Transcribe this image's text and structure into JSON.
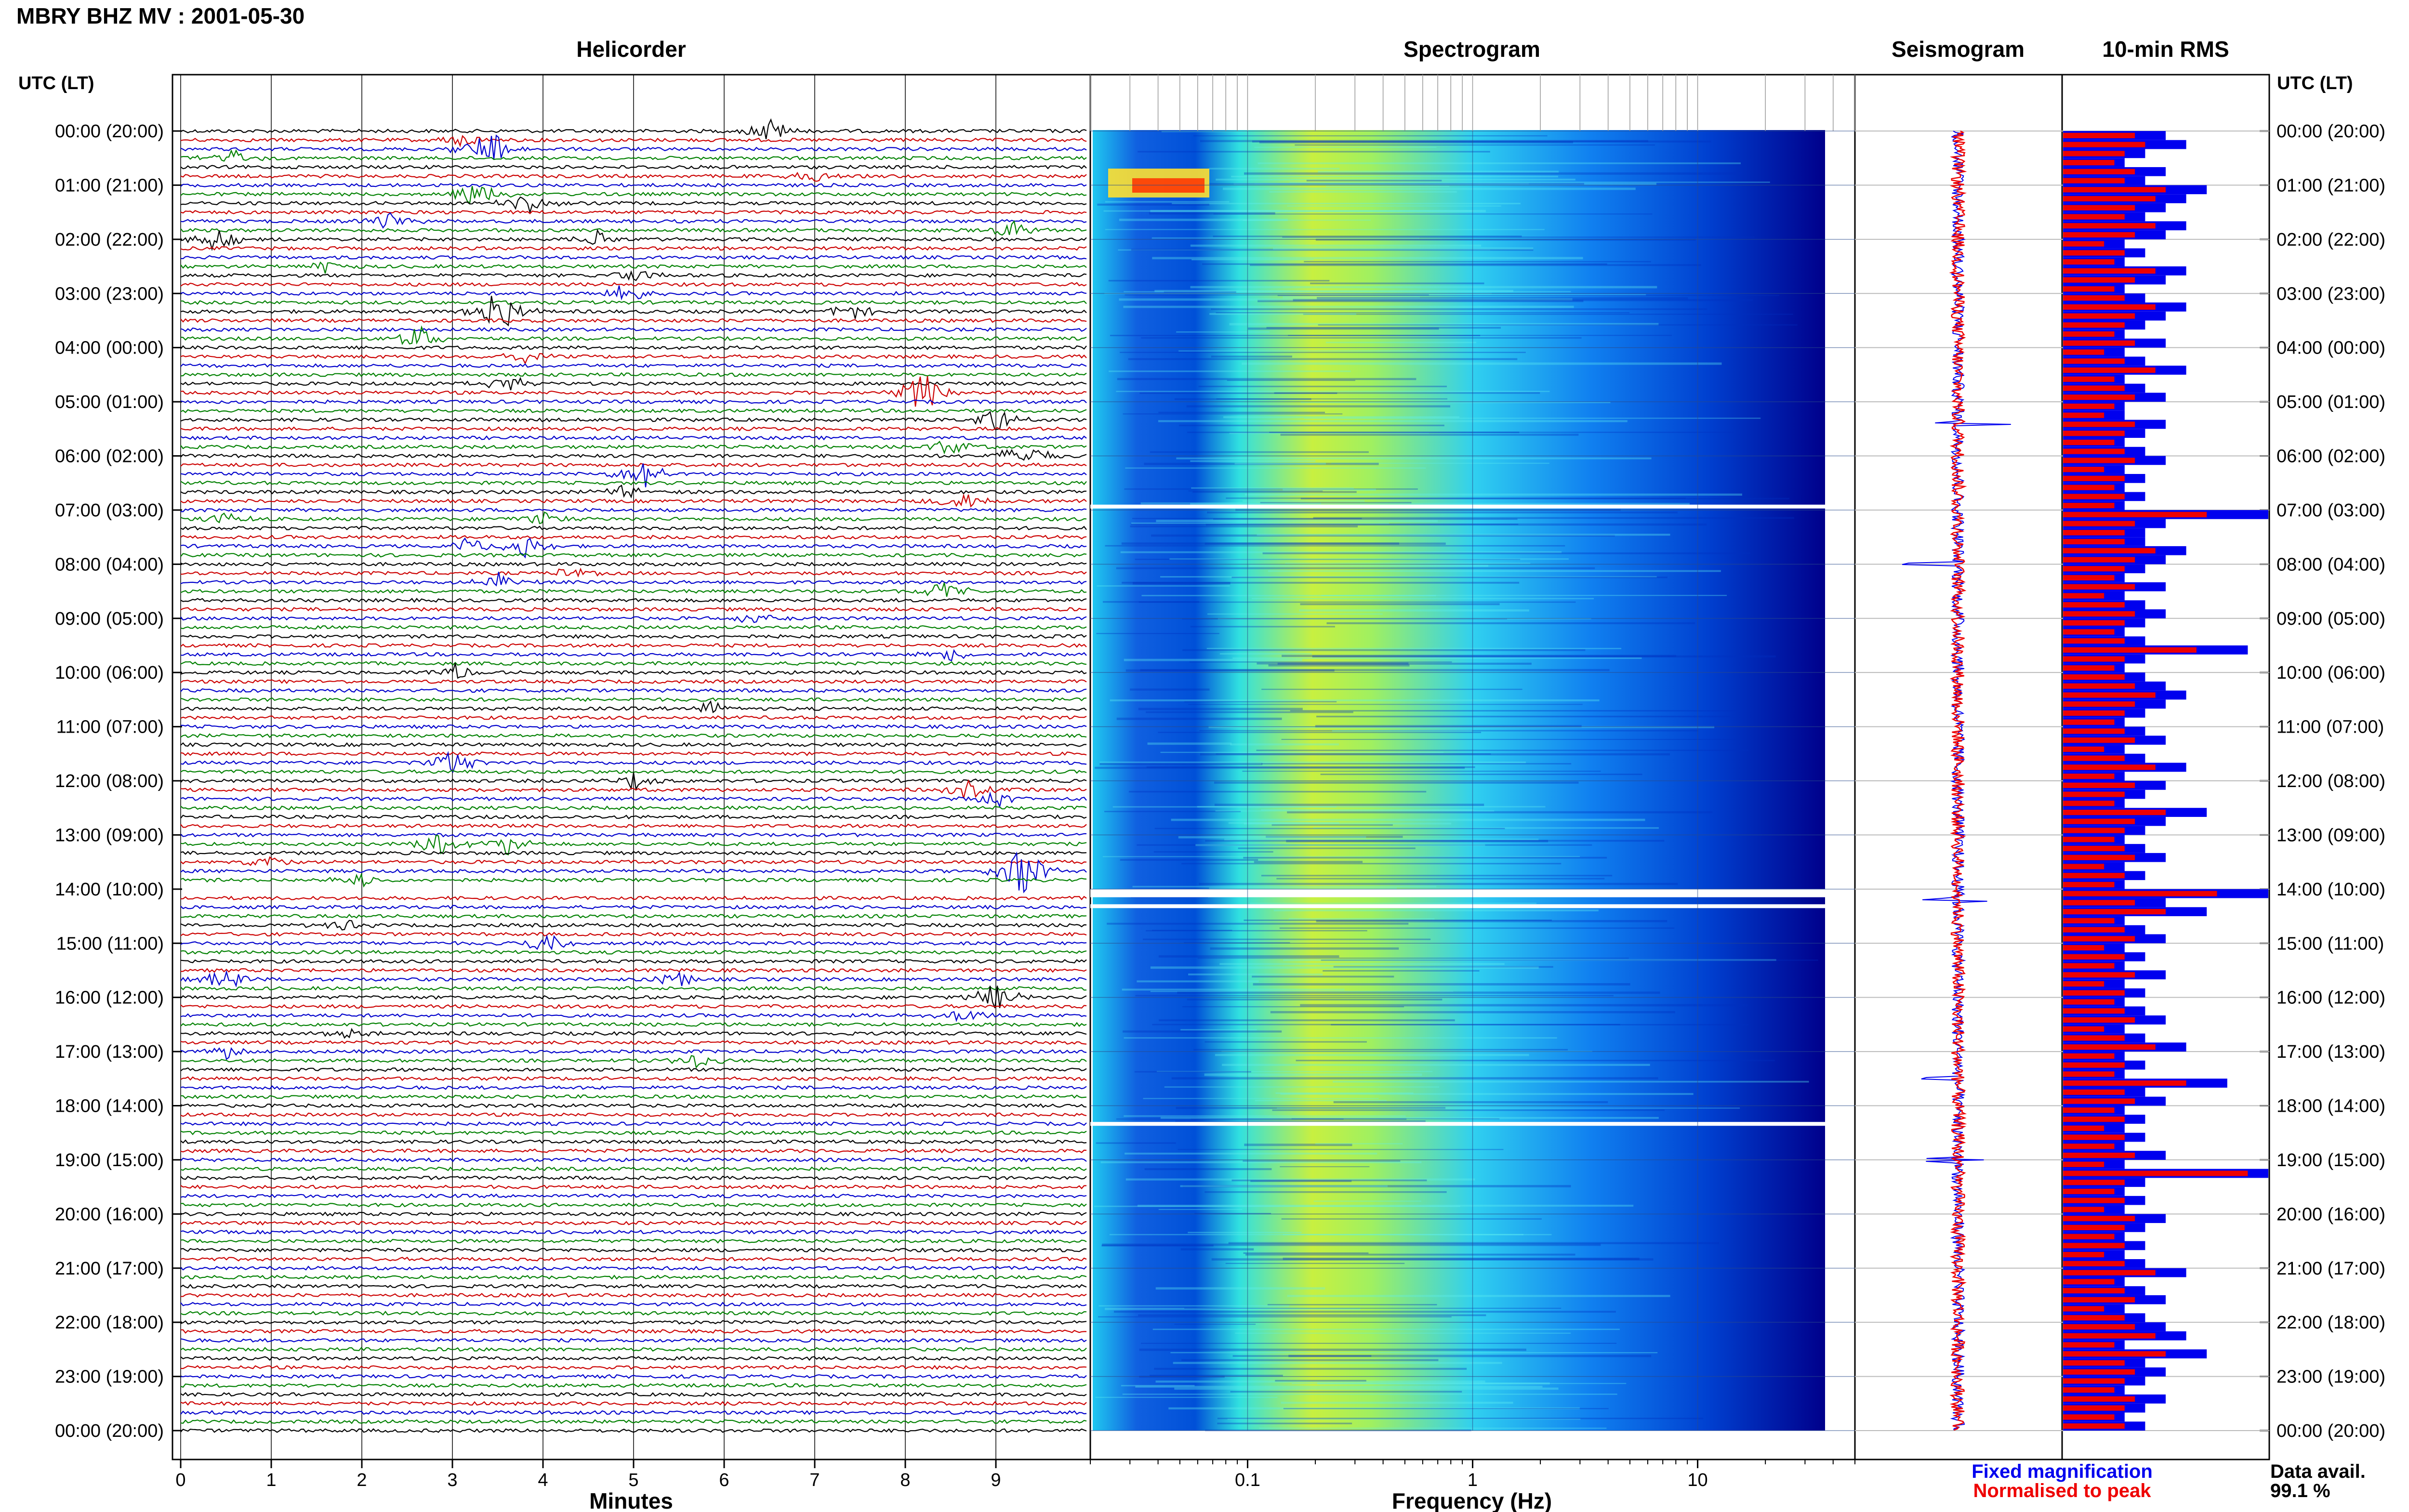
{
  "header": {
    "title": "MBRY BHZ MV : 2001-05-30"
  },
  "panels": {
    "helicorder": "Helicorder",
    "spectrogram": "Spectrogram",
    "seismogram": "Seismogram",
    "rms": "10-min RMS"
  },
  "axes": {
    "left_time_header": "UTC (LT)",
    "right_time_header": "UTC (LT)",
    "helicorder_xlabel": "Minutes",
    "spectrogram_xlabel": "Frequency (Hz)"
  },
  "legend": {
    "fixed": "Fixed magnification",
    "normalised": "Normalised to peak"
  },
  "availability": {
    "label": "Data avail.",
    "value": "99.1 %"
  },
  "colors": {
    "trace_cycle": [
      "#000000",
      "#cc0000",
      "#0000cc",
      "#008000"
    ],
    "fixed_magnification": "#0000ee",
    "normalised_to_peak": "#ee0000",
    "spectrogram_low": "#00008b",
    "spectrogram_high": "#ff0000"
  },
  "chart_data": [
    {
      "type": "line",
      "title": "Helicorder",
      "xlabel": "Minutes",
      "ylabel": "UTC (LT)",
      "x_ticks": [
        "0",
        "1",
        "2",
        "3",
        "4",
        "5",
        "6",
        "7",
        "8",
        "9"
      ],
      "xlim": [
        0,
        10
      ],
      "time_ticks": [
        "00:00 (20:00)",
        "01:00 (21:00)",
        "02:00 (22:00)",
        "03:00 (23:00)",
        "04:00 (00:00)",
        "05:00 (01:00)",
        "06:00 (02:00)",
        "07:00 (03:00)",
        "08:00 (04:00)",
        "09:00 (05:00)",
        "10:00 (06:00)",
        "11:00 (07:00)",
        "12:00 (08:00)",
        "13:00 (09:00)",
        "14:00 (10:00)",
        "15:00 (11:00)",
        "16:00 (12:00)",
        "17:00 (13:00)",
        "18:00 (14:00)",
        "19:00 (15:00)",
        "20:00 (16:00)",
        "21:00 (17:00)",
        "22:00 (18:00)",
        "23:00 (19:00)",
        "00:00 (20:00)"
      ],
      "rows_per_hour": 6,
      "events": [
        {
          "row": 0,
          "minute": 6.5,
          "amp": 0.8
        },
        {
          "row": 1,
          "minute": 3.1,
          "amp": 0.5
        },
        {
          "row": 2,
          "minute": 3.4,
          "amp": 1.4
        },
        {
          "row": 3,
          "minute": 0.6,
          "amp": 0.6
        },
        {
          "row": 5,
          "minute": 7.0,
          "amp": 0.4
        },
        {
          "row": 7,
          "minute": 3.3,
          "amp": 1.2
        },
        {
          "row": 8,
          "minute": 3.8,
          "amp": 0.7
        },
        {
          "row": 10,
          "minute": 2.3,
          "amp": 0.6
        },
        {
          "row": 11,
          "minute": 9.2,
          "amp": 0.6
        },
        {
          "row": 12,
          "minute": 0.4,
          "amp": 0.8
        },
        {
          "row": 12,
          "minute": 4.6,
          "amp": 0.5
        },
        {
          "row": 15,
          "minute": 1.6,
          "amp": 0.4
        },
        {
          "row": 16,
          "minute": 5.0,
          "amp": 0.5
        },
        {
          "row": 18,
          "minute": 4.9,
          "amp": 0.6
        },
        {
          "row": 20,
          "minute": 3.5,
          "amp": 1.6
        },
        {
          "row": 20,
          "minute": 7.4,
          "amp": 0.6
        },
        {
          "row": 23,
          "minute": 2.6,
          "amp": 0.9
        },
        {
          "row": 25,
          "minute": 3.8,
          "amp": 0.4
        },
        {
          "row": 28,
          "minute": 3.6,
          "amp": 0.6
        },
        {
          "row": 29,
          "minute": 8.2,
          "amp": 1.5
        },
        {
          "row": 32,
          "minute": 9.0,
          "amp": 0.8
        },
        {
          "row": 35,
          "minute": 8.5,
          "amp": 0.6
        },
        {
          "row": 36,
          "minute": 9.3,
          "amp": 1.0
        },
        {
          "row": 38,
          "minute": 5.1,
          "amp": 0.9
        },
        {
          "row": 40,
          "minute": 4.9,
          "amp": 0.5
        },
        {
          "row": 41,
          "minute": 8.6,
          "amp": 0.7
        },
        {
          "row": 43,
          "minute": 0.5,
          "amp": 0.4
        },
        {
          "row": 43,
          "minute": 4.0,
          "amp": 0.5
        },
        {
          "row": 46,
          "minute": 3.8,
          "amp": 0.7
        },
        {
          "row": 46,
          "minute": 3.2,
          "amp": 0.6
        },
        {
          "row": 49,
          "minute": 4.3,
          "amp": 0.4
        },
        {
          "row": 50,
          "minute": 3.5,
          "amp": 0.6
        },
        {
          "row": 51,
          "minute": 8.4,
          "amp": 0.7
        },
        {
          "row": 54,
          "minute": 6.3,
          "amp": 0.4
        },
        {
          "row": 58,
          "minute": 8.5,
          "amp": 0.5
        },
        {
          "row": 60,
          "minute": 3.0,
          "amp": 0.6
        },
        {
          "row": 64,
          "minute": 5.8,
          "amp": 0.5
        },
        {
          "row": 70,
          "minute": 3.0,
          "amp": 0.9
        },
        {
          "row": 72,
          "minute": 5.0,
          "amp": 0.5
        },
        {
          "row": 73,
          "minute": 8.7,
          "amp": 0.6
        },
        {
          "row": 74,
          "minute": 9.0,
          "amp": 0.7
        },
        {
          "row": 79,
          "minute": 2.8,
          "amp": 0.9
        },
        {
          "row": 79,
          "minute": 3.6,
          "amp": 0.7
        },
        {
          "row": 81,
          "minute": 0.9,
          "amp": 0.5
        },
        {
          "row": 82,
          "minute": 9.3,
          "amp": 1.8
        },
        {
          "row": 83,
          "minute": 2.0,
          "amp": 0.5
        },
        {
          "row": 88,
          "minute": 1.8,
          "amp": 0.4
        },
        {
          "row": 90,
          "minute": 4.0,
          "amp": 0.8
        },
        {
          "row": 94,
          "minute": 0.5,
          "amp": 0.8
        },
        {
          "row": 94,
          "minute": 5.5,
          "amp": 0.5
        },
        {
          "row": 96,
          "minute": 9.0,
          "amp": 0.9
        },
        {
          "row": 98,
          "minute": 8.6,
          "amp": 0.5
        },
        {
          "row": 100,
          "minute": 1.8,
          "amp": 0.4
        },
        {
          "row": 102,
          "minute": 0.5,
          "amp": 0.4
        },
        {
          "row": 103,
          "minute": 5.7,
          "amp": 0.5
        }
      ],
      "gaps": [
        {
          "row": 84,
          "minute_from": 0.0,
          "minute_to": 10.0
        }
      ]
    },
    {
      "type": "heatmap",
      "title": "Spectrogram",
      "xlabel": "Frequency (Hz)",
      "x_scale": "log",
      "x_ticks": [
        "0.1",
        "1",
        "10"
      ],
      "xlim": [
        0.02,
        50
      ],
      "data_end_hz": 30,
      "colormap": "jet",
      "peak_band_hz": 0.25,
      "microseism_band_hz": [
        0.15,
        1.5
      ],
      "gaps_utc_hours": [
        [
          6.9,
          6.97
        ],
        [
          14.0,
          14.15
        ],
        [
          14.28,
          14.35
        ],
        [
          18.3,
          18.35
        ]
      ]
    },
    {
      "type": "line",
      "title": "Seismogram",
      "spikes_utc_hours": [
        5.4,
        8.0,
        14.2,
        17.5,
        19.0
      ]
    },
    {
      "type": "bar",
      "title": "10-min RMS",
      "series": [
        {
          "name": "Fixed magnification",
          "values": [
            0.5,
            0.6,
            0.4,
            0.3,
            0.5,
            0.4,
            0.7,
            0.6,
            0.5,
            0.4,
            0.6,
            0.5,
            0.3,
            0.4,
            0.3,
            0.6,
            0.5,
            0.3,
            0.4,
            0.6,
            0.5,
            0.4,
            0.3,
            0.5,
            0.3,
            0.4,
            0.6,
            0.3,
            0.4,
            0.5,
            0.3,
            0.3,
            0.5,
            0.4,
            0.3,
            0.4,
            0.5,
            0.3,
            0.4,
            0.3,
            0.4,
            0.3,
            1.0,
            0.5,
            0.4,
            0.4,
            0.6,
            0.5,
            0.4,
            0.3,
            0.5,
            0.3,
            0.4,
            0.5,
            0.4,
            0.3,
            0.4,
            0.9,
            0.4,
            0.3,
            0.4,
            0.5,
            0.6,
            0.5,
            0.4,
            0.3,
            0.4,
            0.5,
            0.3,
            0.4,
            0.6,
            0.3,
            0.5,
            0.4,
            0.3,
            0.7,
            0.5,
            0.4,
            0.3,
            0.4,
            0.5,
            0.3,
            0.4,
            0.3,
            1.0,
            0.5,
            0.7,
            0.3,
            0.4,
            0.5,
            0.3,
            0.4,
            0.3,
            0.5,
            0.3,
            0.4,
            0.3,
            0.4,
            0.5,
            0.3,
            0.4,
            0.6,
            0.3,
            0.4,
            0.3,
            0.8,
            0.4,
            0.5,
            0.3,
            0.4,
            0.3,
            0.4,
            0.3,
            0.5,
            0.3,
            1.0,
            0.4,
            0.3,
            0.4,
            0.3,
            0.5,
            0.4,
            0.3,
            0.4,
            0.3,
            0.4,
            0.6,
            0.3,
            0.4,
            0.5,
            0.3,
            0.4,
            0.5,
            0.6,
            0.3,
            0.7,
            0.4,
            0.5,
            0.4,
            0.3,
            0.5,
            0.4,
            0.3,
            0.4
          ]
        },
        {
          "name": "Normalised to peak",
          "values": [
            0.35,
            0.4,
            0.3,
            0.25,
            0.35,
            0.3,
            0.5,
            0.45,
            0.35,
            0.3,
            0.45,
            0.35,
            0.2,
            0.3,
            0.25,
            0.45,
            0.35,
            0.25,
            0.3,
            0.45,
            0.35,
            0.3,
            0.25,
            0.35,
            0.2,
            0.3,
            0.45,
            0.25,
            0.3,
            0.35,
            0.25,
            0.2,
            0.35,
            0.3,
            0.25,
            0.3,
            0.35,
            0.2,
            0.3,
            0.25,
            0.3,
            0.25,
            0.7,
            0.35,
            0.3,
            0.3,
            0.45,
            0.35,
            0.3,
            0.25,
            0.35,
            0.2,
            0.3,
            0.35,
            0.3,
            0.25,
            0.3,
            0.65,
            0.3,
            0.25,
            0.3,
            0.35,
            0.45,
            0.35,
            0.3,
            0.25,
            0.3,
            0.35,
            0.2,
            0.3,
            0.45,
            0.25,
            0.35,
            0.3,
            0.25,
            0.5,
            0.35,
            0.3,
            0.25,
            0.3,
            0.35,
            0.2,
            0.3,
            0.25,
            0.75,
            0.35,
            0.5,
            0.25,
            0.3,
            0.35,
            0.2,
            0.3,
            0.25,
            0.35,
            0.2,
            0.3,
            0.25,
            0.3,
            0.35,
            0.2,
            0.3,
            0.45,
            0.25,
            0.3,
            0.25,
            0.6,
            0.3,
            0.35,
            0.25,
            0.3,
            0.2,
            0.3,
            0.25,
            0.35,
            0.2,
            0.9,
            0.3,
            0.25,
            0.3,
            0.2,
            0.35,
            0.3,
            0.25,
            0.3,
            0.2,
            0.3,
            0.45,
            0.25,
            0.3,
            0.35,
            0.2,
            0.3,
            0.35,
            0.45,
            0.25,
            0.5,
            0.3,
            0.35,
            0.3,
            0.25,
            0.35,
            0.3,
            0.25,
            0.3
          ]
        }
      ]
    }
  ]
}
